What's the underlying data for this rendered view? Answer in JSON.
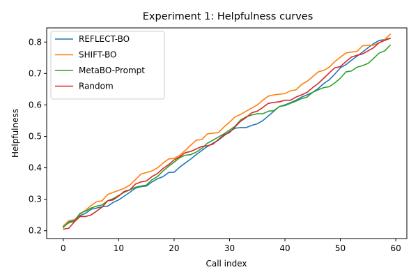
{
  "chart_data": {
    "type": "line",
    "title": "Experiment 1: Helpfulness curves",
    "xlabel": "Call index",
    "ylabel": "Helpfulness",
    "xlim": [
      -3,
      62
    ],
    "ylim": [
      0.175,
      0.845
    ],
    "xticks": [
      0,
      10,
      20,
      30,
      40,
      50,
      60
    ],
    "yticks": [
      0.2,
      0.3,
      0.4,
      0.5,
      0.6,
      0.7,
      0.8
    ],
    "grid": false,
    "legend_position": "top-left",
    "x": [
      0,
      1,
      2,
      3,
      4,
      5,
      6,
      7,
      8,
      9,
      10,
      11,
      12,
      13,
      14,
      15,
      16,
      17,
      18,
      19,
      20,
      21,
      22,
      23,
      24,
      25,
      26,
      27,
      28,
      29,
      30,
      31,
      32,
      33,
      34,
      35,
      36,
      37,
      38,
      39,
      40,
      41,
      42,
      43,
      44,
      45,
      46,
      47,
      48,
      49,
      50,
      51,
      52,
      53,
      54,
      55,
      56,
      57,
      58,
      59
    ],
    "series": [
      {
        "name": "REFLECT-BO",
        "color": "#1f77b4",
        "values": [
          0.21,
          0.228,
          0.232,
          0.248,
          0.255,
          0.268,
          0.272,
          0.276,
          0.278,
          0.29,
          0.298,
          0.31,
          0.322,
          0.335,
          0.34,
          0.342,
          0.355,
          0.365,
          0.372,
          0.385,
          0.386,
          0.402,
          0.415,
          0.428,
          0.442,
          0.455,
          0.468,
          0.478,
          0.488,
          0.502,
          0.515,
          0.526,
          0.528,
          0.528,
          0.535,
          0.54,
          0.55,
          0.565,
          0.58,
          0.595,
          0.6,
          0.607,
          0.615,
          0.625,
          0.632,
          0.64,
          0.652,
          0.668,
          0.68,
          0.698,
          0.718,
          0.728,
          0.742,
          0.755,
          0.768,
          0.782,
          0.795,
          0.805,
          0.808,
          0.812
        ]
      },
      {
        "name": "SHIFT-BO",
        "color": "#ff7f0e",
        "values": [
          0.215,
          0.232,
          0.235,
          0.252,
          0.265,
          0.28,
          0.292,
          0.295,
          0.315,
          0.322,
          0.328,
          0.335,
          0.345,
          0.362,
          0.38,
          0.385,
          0.39,
          0.4,
          0.415,
          0.428,
          0.43,
          0.44,
          0.455,
          0.472,
          0.488,
          0.49,
          0.508,
          0.51,
          0.512,
          0.53,
          0.545,
          0.562,
          0.57,
          0.58,
          0.59,
          0.6,
          0.615,
          0.628,
          0.632,
          0.634,
          0.636,
          0.645,
          0.648,
          0.665,
          0.675,
          0.69,
          0.705,
          0.71,
          0.72,
          0.738,
          0.752,
          0.765,
          0.768,
          0.77,
          0.788,
          0.79,
          0.79,
          0.798,
          0.808,
          0.825
        ]
      },
      {
        "name": "MetaBO-Prompt",
        "color": "#2ca02c",
        "values": [
          0.212,
          0.225,
          0.23,
          0.255,
          0.262,
          0.272,
          0.278,
          0.282,
          0.295,
          0.302,
          0.312,
          0.322,
          0.33,
          0.338,
          0.342,
          0.345,
          0.362,
          0.372,
          0.39,
          0.405,
          0.418,
          0.432,
          0.44,
          0.442,
          0.45,
          0.462,
          0.478,
          0.488,
          0.498,
          0.508,
          0.52,
          0.532,
          0.552,
          0.562,
          0.568,
          0.572,
          0.572,
          0.58,
          0.582,
          0.595,
          0.598,
          0.605,
          0.612,
          0.62,
          0.625,
          0.64,
          0.648,
          0.655,
          0.658,
          0.67,
          0.685,
          0.705,
          0.708,
          0.72,
          0.725,
          0.732,
          0.748,
          0.765,
          0.772,
          0.79
        ]
      },
      {
        "name": "Random",
        "color": "#d62728",
        "values": [
          0.205,
          0.208,
          0.228,
          0.245,
          0.245,
          0.25,
          0.262,
          0.275,
          0.295,
          0.298,
          0.31,
          0.325,
          0.33,
          0.348,
          0.355,
          0.358,
          0.372,
          0.382,
          0.398,
          0.41,
          0.425,
          0.435,
          0.448,
          0.452,
          0.46,
          0.468,
          0.47,
          0.475,
          0.49,
          0.505,
          0.512,
          0.53,
          0.548,
          0.56,
          0.575,
          0.58,
          0.592,
          0.605,
          0.608,
          0.61,
          0.615,
          0.615,
          0.625,
          0.632,
          0.64,
          0.655,
          0.668,
          0.685,
          0.702,
          0.718,
          0.722,
          0.738,
          0.752,
          0.758,
          0.762,
          0.772,
          0.782,
          0.798,
          0.805,
          0.812
        ]
      }
    ]
  }
}
